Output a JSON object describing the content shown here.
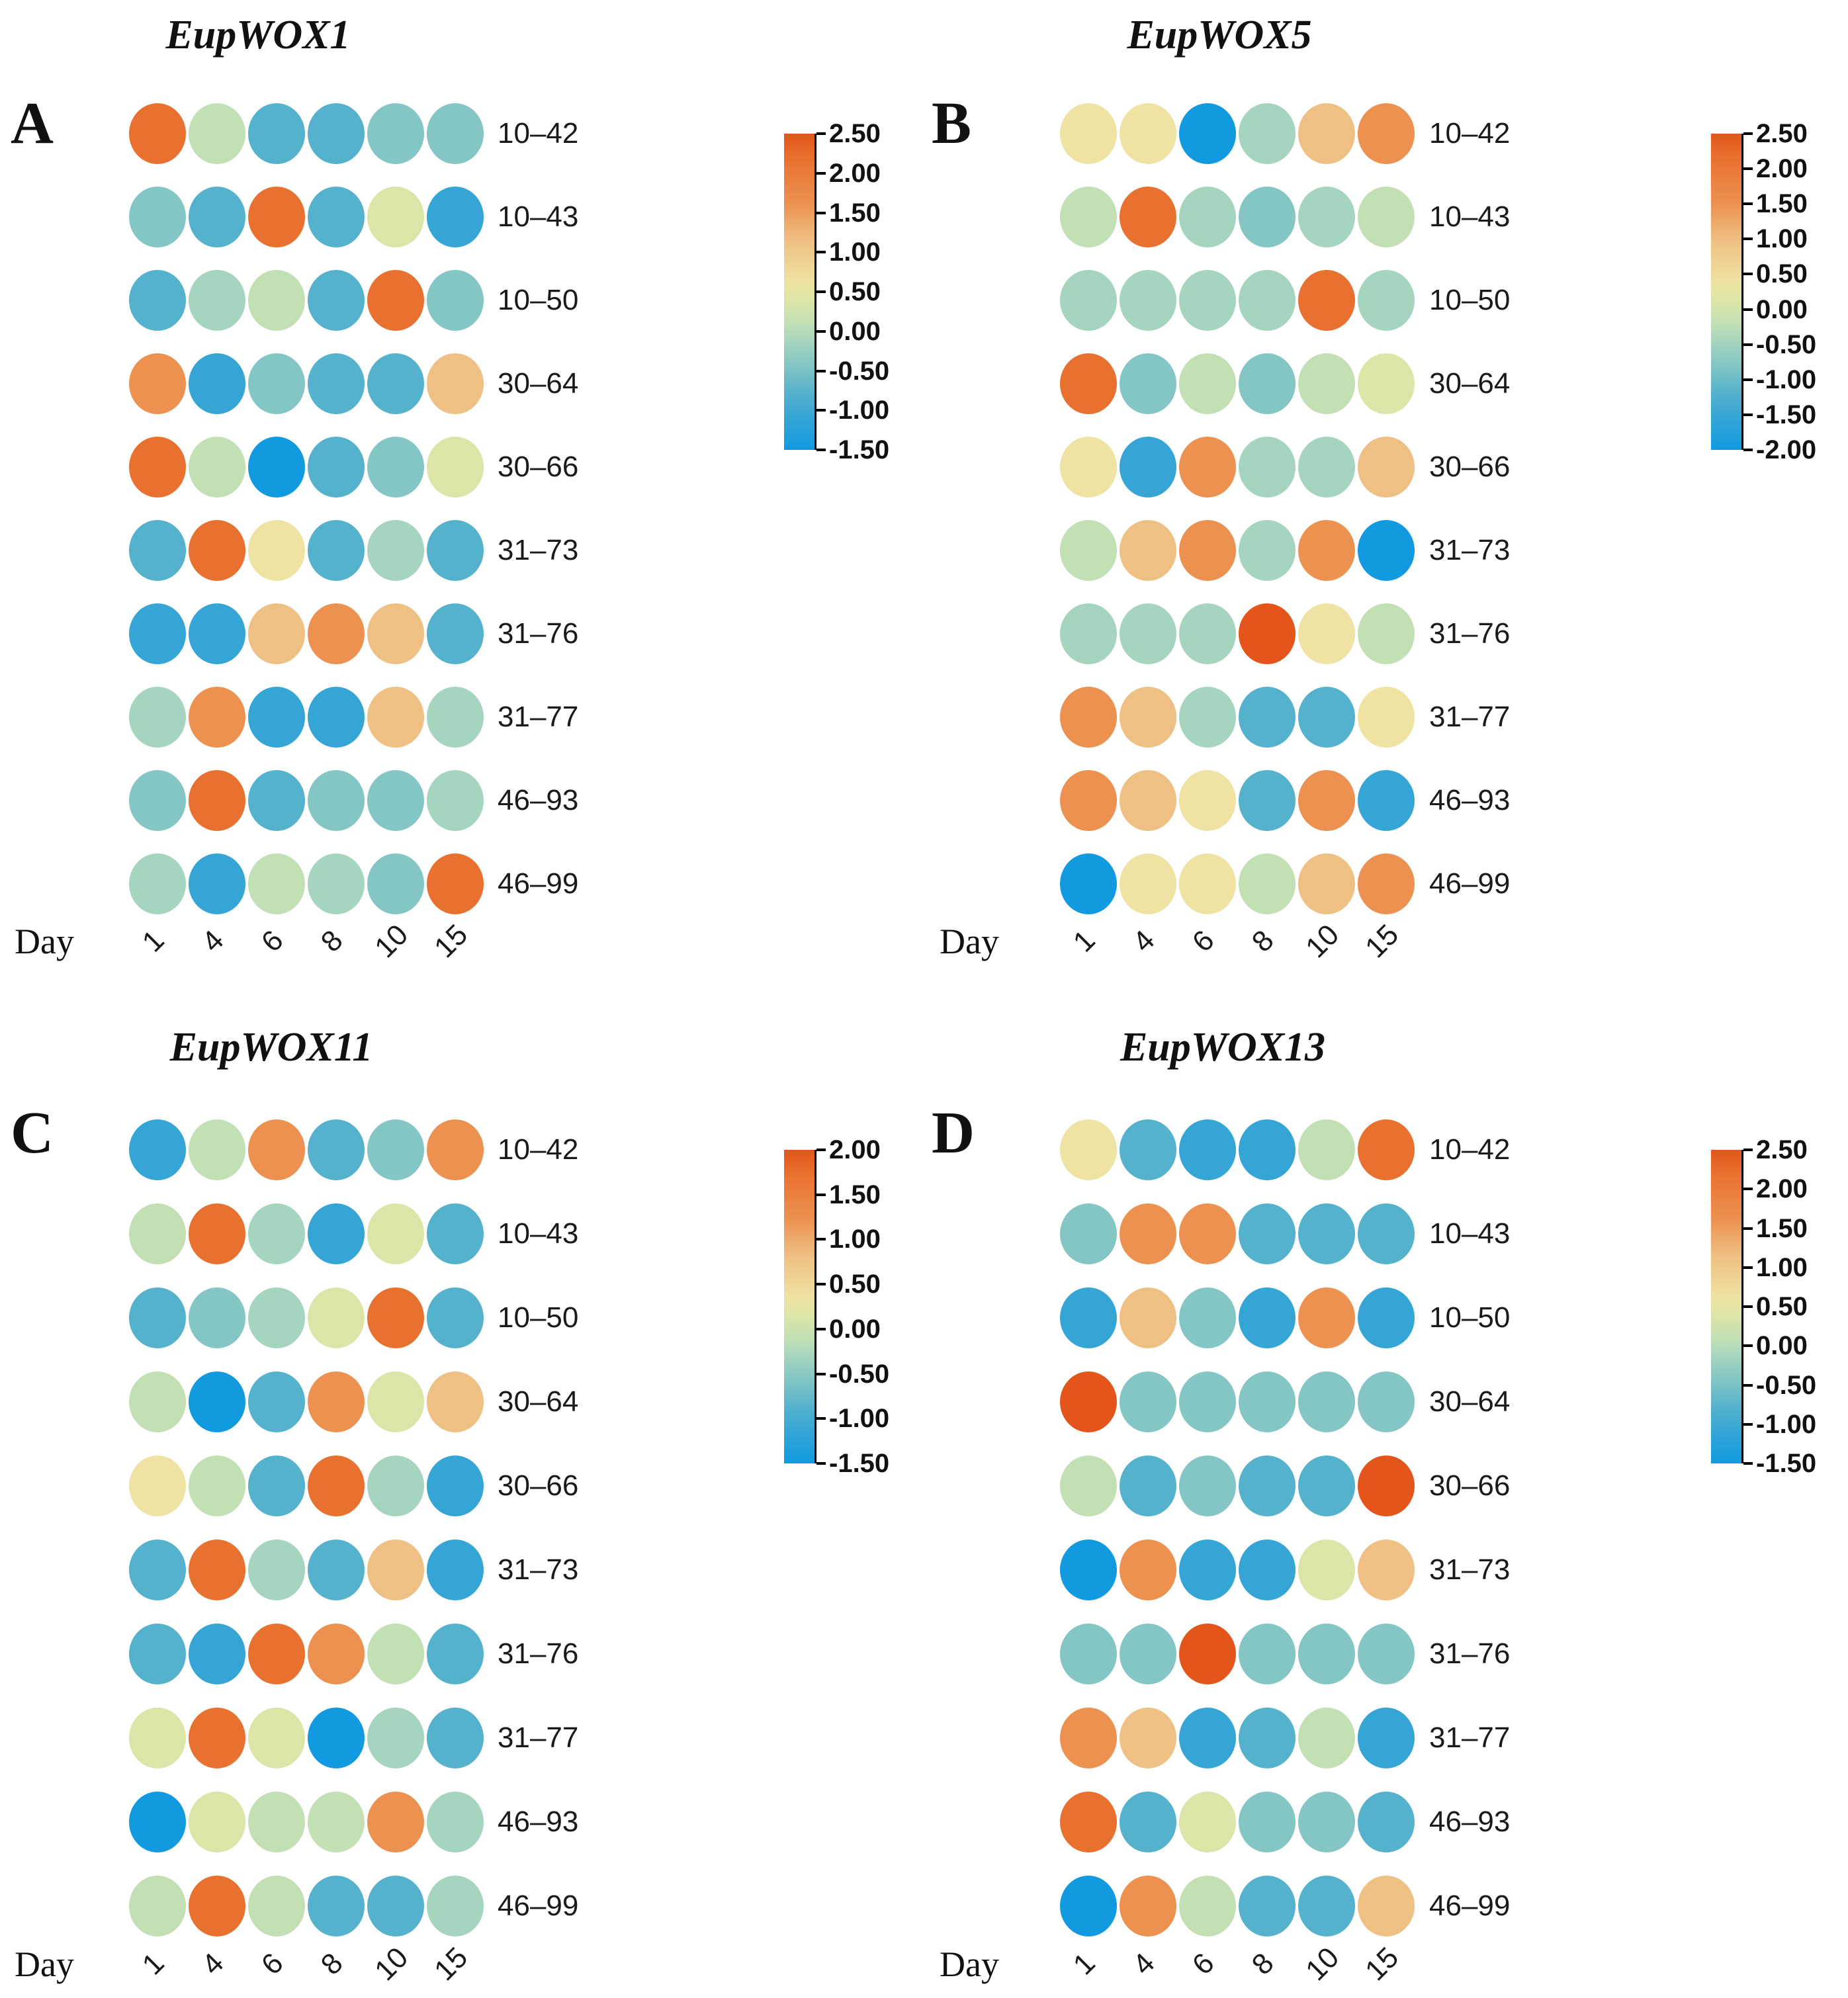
{
  "figure": {
    "background": "#ffffff"
  },
  "day_axis_label": "Day",
  "row_labels": [
    "10–42",
    "10–43",
    "10–50",
    "30–64",
    "30–66",
    "31–73",
    "31–76",
    "31–77",
    "46–93",
    "46–99"
  ],
  "panels": [
    {
      "letter": "A",
      "title": "EupWOX1",
      "colorbar_tick_labels": [
        "2.50",
        "2.00",
        "1.50",
        "1.00",
        "0.50",
        "0.00",
        "-0.50",
        "-1.00",
        "-1.50"
      ]
    },
    {
      "letter": "B",
      "title": "EupWOX5",
      "colorbar_tick_labels": [
        "2.50",
        "2.00",
        "1.50",
        "1.00",
        "0.50",
        "0.00",
        "-0.50",
        "-1.00",
        "-1.50",
        "-2.00"
      ]
    },
    {
      "letter": "C",
      "title": "EupWOX11",
      "colorbar_tick_labels": [
        "2.00",
        "1.50",
        "1.00",
        "0.50",
        "0.00",
        "-0.50",
        "-1.00",
        "-1.50"
      ]
    },
    {
      "letter": "D",
      "title": "EupWOX13",
      "colorbar_tick_labels": [
        "2.50",
        "2.00",
        "1.50",
        "1.00",
        "0.50",
        "0.00",
        "-0.50",
        "-1.00",
        "-1.50"
      ]
    }
  ],
  "chart_data": {
    "type": "heatmap",
    "subtype": "dot-matrix-expression-heatmap",
    "x": [
      "1",
      "4",
      "6",
      "8",
      "10",
      "15"
    ],
    "xlabel": "Day",
    "rows": [
      "10–42",
      "10–43",
      "10–50",
      "30–64",
      "30–66",
      "31–73",
      "31–76",
      "31–77",
      "46–93",
      "46–99"
    ],
    "legend_position": "right-of-each-panel",
    "grid": "off",
    "palette_hex": {
      "o1": "#E4551C",
      "o2": "#E97130",
      "o3": "#EC9150",
      "o4": "#EFC083",
      "y1": "#EEE3A2",
      "y2": "#DCE5A7",
      "g1": "#C3DFB4",
      "g2": "#A5D5BF",
      "t1": "#84C6C4",
      "t2": "#55B2CC",
      "b1": "#35A5D6",
      "b2": "#119AE0"
    },
    "colorbar_gradient_stops": [
      "#E4551C",
      "#E97130",
      "#EC9150",
      "#EFC083",
      "#EEE3A2",
      "#DCE5A7",
      "#C3DFB4",
      "#A5D5BF",
      "#84C6C4",
      "#55B2CC",
      "#35A5D6",
      "#119AE0"
    ],
    "panels": [
      {
        "panel": "A",
        "title": "EupWOX1",
        "colorbar_range": [
          2.5,
          -1.5
        ],
        "colorbar_ticks": [
          2.5,
          2.0,
          1.5,
          1.0,
          0.5,
          0.0,
          -0.5,
          -1.0,
          -1.5
        ],
        "approx_value_by_color": {
          "o1": 2.4,
          "o2": 2.1,
          "o3": 1.6,
          "o4": 1.1,
          "y1": 0.65,
          "y2": 0.4,
          "g1": 0.1,
          "g2": -0.15,
          "t1": -0.4,
          "t2": -0.8,
          "b1": -1.1,
          "b2": -1.4
        },
        "cell_colors": [
          [
            "o2",
            "g1",
            "t2",
            "t2",
            "t1",
            "t1"
          ],
          [
            "t1",
            "t2",
            "o2",
            "t2",
            "y2",
            "b1"
          ],
          [
            "t2",
            "g2",
            "g1",
            "t2",
            "o2",
            "t1"
          ],
          [
            "o3",
            "b1",
            "t1",
            "t2",
            "t2",
            "o4"
          ],
          [
            "o2",
            "g1",
            "b2",
            "t2",
            "t1",
            "y2"
          ],
          [
            "t2",
            "o2",
            "y1",
            "t2",
            "g2",
            "t2"
          ],
          [
            "b1",
            "b1",
            "o4",
            "o3",
            "o4",
            "t2"
          ],
          [
            "g2",
            "o3",
            "b1",
            "b1",
            "o4",
            "g2"
          ],
          [
            "t1",
            "o2",
            "t2",
            "t1",
            "t1",
            "g2"
          ],
          [
            "g2",
            "b1",
            "g1",
            "g2",
            "t1",
            "o2"
          ]
        ]
      },
      {
        "panel": "B",
        "title": "EupWOX5",
        "colorbar_range": [
          2.5,
          -2.0
        ],
        "colorbar_ticks": [
          2.5,
          2.0,
          1.5,
          1.0,
          0.5,
          0.0,
          -0.5,
          -1.0,
          -1.5,
          -2.0
        ],
        "approx_value_by_color": {
          "o1": 2.4,
          "o2": 2.0,
          "o3": 1.5,
          "o4": 1.0,
          "y1": 0.45,
          "y2": 0.1,
          "g1": -0.2,
          "g2": -0.45,
          "t1": -0.8,
          "t2": -1.2,
          "b1": -1.55,
          "b2": -1.9
        },
        "cell_colors": [
          [
            "y1",
            "y1",
            "b2",
            "g2",
            "o4",
            "o3"
          ],
          [
            "g1",
            "o2",
            "g2",
            "t1",
            "g2",
            "g1"
          ],
          [
            "g2",
            "g2",
            "g2",
            "g2",
            "o2",
            "g2"
          ],
          [
            "o2",
            "t1",
            "g1",
            "t1",
            "g1",
            "y2"
          ],
          [
            "y1",
            "b1",
            "o3",
            "g2",
            "g2",
            "o4"
          ],
          [
            "g1",
            "o4",
            "o3",
            "g2",
            "o3",
            "b2"
          ],
          [
            "g2",
            "g2",
            "g2",
            "o1",
            "y1",
            "g1"
          ],
          [
            "o3",
            "o4",
            "g2",
            "t2",
            "t2",
            "y1"
          ],
          [
            "o3",
            "o4",
            "y1",
            "t2",
            "o3",
            "b1"
          ],
          [
            "b2",
            "y1",
            "y1",
            "g1",
            "o4",
            "o3"
          ]
        ]
      },
      {
        "panel": "C",
        "title": "EupWOX11",
        "colorbar_range": [
          2.0,
          -1.5
        ],
        "colorbar_ticks": [
          2.0,
          1.5,
          1.0,
          0.5,
          0.0,
          -0.5,
          -1.0,
          -1.5
        ],
        "approx_value_by_color": {
          "o1": 1.9,
          "o2": 1.65,
          "o3": 1.25,
          "o4": 0.8,
          "y1": 0.4,
          "y2": 0.15,
          "g1": -0.1,
          "g2": -0.3,
          "t1": -0.55,
          "t2": -0.85,
          "b1": -1.15,
          "b2": -1.45
        },
        "cell_colors": [
          [
            "b1",
            "g1",
            "o3",
            "t2",
            "t1",
            "o3"
          ],
          [
            "g1",
            "o2",
            "g2",
            "b1",
            "y2",
            "t2"
          ],
          [
            "t2",
            "t1",
            "g2",
            "y2",
            "o2",
            "t2"
          ],
          [
            "g1",
            "b2",
            "t2",
            "o3",
            "y2",
            "o4"
          ],
          [
            "y1",
            "g1",
            "t2",
            "o2",
            "g2",
            "b1"
          ],
          [
            "t2",
            "o2",
            "g2",
            "t2",
            "o4",
            "b1"
          ],
          [
            "t2",
            "b1",
            "o2",
            "o3",
            "g1",
            "t2"
          ],
          [
            "y2",
            "o2",
            "y2",
            "b2",
            "g2",
            "t2"
          ],
          [
            "b2",
            "y2",
            "g1",
            "g1",
            "o3",
            "g2"
          ],
          [
            "g1",
            "o2",
            "g1",
            "t2",
            "t2",
            "g2"
          ]
        ]
      },
      {
        "panel": "D",
        "title": "EupWOX13",
        "colorbar_range": [
          2.5,
          -1.5
        ],
        "colorbar_ticks": [
          2.5,
          2.0,
          1.5,
          1.0,
          0.5,
          0.0,
          -0.5,
          -1.0,
          -1.5
        ],
        "approx_value_by_color": {
          "o1": 2.4,
          "o2": 2.1,
          "o3": 1.6,
          "o4": 1.1,
          "y1": 0.65,
          "y2": 0.4,
          "g1": 0.1,
          "g2": -0.15,
          "t1": -0.4,
          "t2": -0.8,
          "b1": -1.1,
          "b2": -1.4
        },
        "cell_colors": [
          [
            "y1",
            "t2",
            "b1",
            "b1",
            "g1",
            "o2"
          ],
          [
            "t1",
            "o3",
            "o3",
            "t2",
            "t2",
            "t2"
          ],
          [
            "b1",
            "o4",
            "t1",
            "b1",
            "o3",
            "b1"
          ],
          [
            "o1",
            "t1",
            "t1",
            "t1",
            "t1",
            "t1"
          ],
          [
            "g1",
            "t2",
            "t1",
            "t2",
            "t2",
            "o1"
          ],
          [
            "b2",
            "o3",
            "b1",
            "b1",
            "y2",
            "o4"
          ],
          [
            "t1",
            "t1",
            "o1",
            "t1",
            "t1",
            "t1"
          ],
          [
            "o3",
            "o4",
            "b1",
            "t2",
            "g1",
            "b1"
          ],
          [
            "o2",
            "t2",
            "y2",
            "t1",
            "t1",
            "t2"
          ],
          [
            "b2",
            "o3",
            "g1",
            "t2",
            "t2",
            "o4"
          ]
        ]
      }
    ]
  }
}
